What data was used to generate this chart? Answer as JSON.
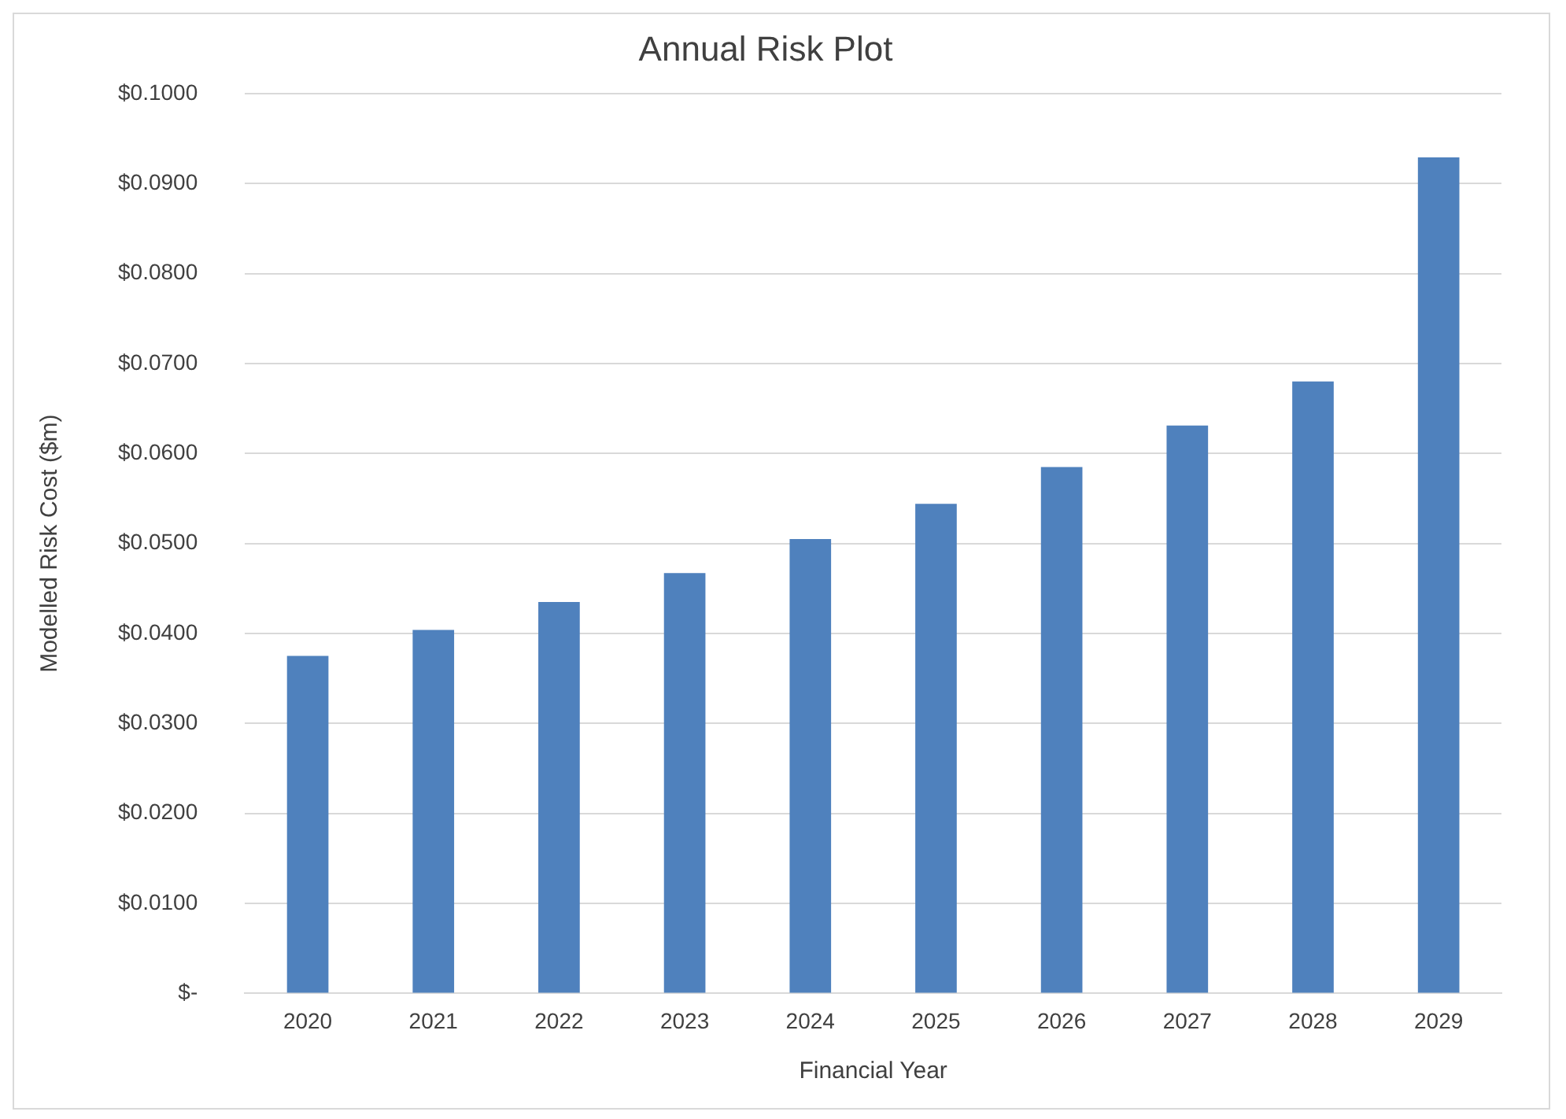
{
  "chart_data": {
    "type": "bar",
    "title": "Annual Risk Plot",
    "xlabel": "Financial Year",
    "ylabel": "Modelled Risk Cost ($m)",
    "categories": [
      "2020",
      "2021",
      "2022",
      "2023",
      "2024",
      "2025",
      "2026",
      "2027",
      "2028",
      "2029"
    ],
    "values": [
      0.0375,
      0.0404,
      0.0435,
      0.0467,
      0.0505,
      0.0544,
      0.0585,
      0.0631,
      0.068,
      0.0929
    ],
    "color": "#4f81bd",
    "ylim": [
      0,
      0.1
    ],
    "yticks": [
      {
        "value": 0,
        "label": "$-"
      },
      {
        "value": 0.01,
        "label": "$0.0100"
      },
      {
        "value": 0.02,
        "label": "$0.0200"
      },
      {
        "value": 0.03,
        "label": "$0.0300"
      },
      {
        "value": 0.04,
        "label": "$0.0400"
      },
      {
        "value": 0.05,
        "label": "$0.0500"
      },
      {
        "value": 0.06,
        "label": "$0.0600"
      },
      {
        "value": 0.07,
        "label": "$0.0700"
      },
      {
        "value": 0.08,
        "label": "$0.0800"
      },
      {
        "value": 0.09,
        "label": "$0.0900"
      },
      {
        "value": 0.1,
        "label": "$0.1000"
      }
    ],
    "grid": "y"
  }
}
